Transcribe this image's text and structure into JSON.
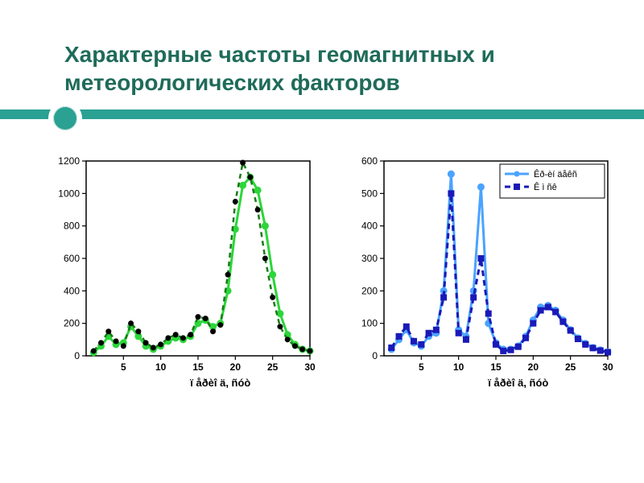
{
  "title": "Характерные частоты геомагнитных и метеорологических факторов",
  "accent_color": "#2aa193",
  "title_color": "#1f6b5a",
  "chart_left": {
    "type": "line",
    "xlabel": "ï åðèî ä, ñóò",
    "xlim": [
      0,
      30
    ],
    "xtick_step": 5,
    "ylim": [
      0,
      1200
    ],
    "ytick_step": 200,
    "series": [
      {
        "name": "solid",
        "color": "#2cd63a",
        "dash": "none",
        "line_width": 3,
        "marker": "circle",
        "marker_size": 4,
        "data": [
          [
            1,
            20
          ],
          [
            2,
            60
          ],
          [
            3,
            120
          ],
          [
            4,
            70
          ],
          [
            5,
            80
          ],
          [
            6,
            180
          ],
          [
            7,
            120
          ],
          [
            8,
            60
          ],
          [
            9,
            40
          ],
          [
            10,
            60
          ],
          [
            11,
            90
          ],
          [
            12,
            110
          ],
          [
            13,
            100
          ],
          [
            14,
            120
          ],
          [
            15,
            200
          ],
          [
            16,
            220
          ],
          [
            17,
            180
          ],
          [
            18,
            200
          ],
          [
            19,
            400
          ],
          [
            20,
            780
          ],
          [
            21,
            1050
          ],
          [
            22,
            1100
          ],
          [
            23,
            1020
          ],
          [
            24,
            800
          ],
          [
            25,
            500
          ],
          [
            26,
            260
          ],
          [
            27,
            130
          ],
          [
            28,
            70
          ],
          [
            29,
            40
          ],
          [
            30,
            30
          ]
        ]
      },
      {
        "name": "dashed",
        "color": "#1a7a1a",
        "dash": "6,5",
        "line_width": 2.5,
        "marker": "dot",
        "marker_size": 3,
        "data": [
          [
            1,
            30
          ],
          [
            2,
            80
          ],
          [
            3,
            150
          ],
          [
            4,
            90
          ],
          [
            5,
            60
          ],
          [
            6,
            200
          ],
          [
            7,
            150
          ],
          [
            8,
            80
          ],
          [
            9,
            50
          ],
          [
            10,
            70
          ],
          [
            11,
            110
          ],
          [
            12,
            130
          ],
          [
            13,
            110
          ],
          [
            14,
            130
          ],
          [
            15,
            240
          ],
          [
            16,
            230
          ],
          [
            17,
            150
          ],
          [
            18,
            190
          ],
          [
            19,
            500
          ],
          [
            20,
            950
          ],
          [
            21,
            1190
          ],
          [
            22,
            1100
          ],
          [
            23,
            900
          ],
          [
            24,
            600
          ],
          [
            25,
            360
          ],
          [
            26,
            180
          ],
          [
            27,
            100
          ],
          [
            28,
            60
          ],
          [
            29,
            40
          ],
          [
            30,
            30
          ]
        ]
      }
    ],
    "background_color": "#ffffff",
    "axis_color": "#000000"
  },
  "chart_right": {
    "type": "line",
    "xlabel": "ï åðèî ä, ñóò",
    "xlim": [
      0,
      30
    ],
    "xtick_step": 5,
    "ylim": [
      0,
      600
    ],
    "ytick_step": 100,
    "legend": {
      "items": [
        {
          "label": "Êð-èí äåêñ",
          "color": "#4aa3ff",
          "dash": "none",
          "marker": "circle"
        },
        {
          "label": "Ê ì ñê",
          "color": "#1a1ab8",
          "dash": "7,5",
          "marker": "square"
        }
      ]
    },
    "series": [
      {
        "name": "s1",
        "color": "#4aa3ff",
        "dash": "none",
        "line_width": 3,
        "marker": "circle",
        "marker_size": 4,
        "data": [
          [
            1,
            20
          ],
          [
            2,
            50
          ],
          [
            3,
            80
          ],
          [
            4,
            40
          ],
          [
            5,
            30
          ],
          [
            6,
            60
          ],
          [
            7,
            70
          ],
          [
            8,
            200
          ],
          [
            9,
            560
          ],
          [
            10,
            80
          ],
          [
            11,
            60
          ],
          [
            12,
            200
          ],
          [
            13,
            520
          ],
          [
            14,
            100
          ],
          [
            15,
            40
          ],
          [
            16,
            20
          ],
          [
            17,
            20
          ],
          [
            18,
            30
          ],
          [
            19,
            60
          ],
          [
            20,
            110
          ],
          [
            21,
            150
          ],
          [
            22,
            155
          ],
          [
            23,
            140
          ],
          [
            24,
            110
          ],
          [
            25,
            80
          ],
          [
            26,
            55
          ],
          [
            27,
            38
          ],
          [
            28,
            25
          ],
          [
            29,
            18
          ],
          [
            30,
            12
          ]
        ]
      },
      {
        "name": "s2",
        "color": "#1a1ab8",
        "dash": "7,5",
        "line_width": 3,
        "marker": "square",
        "marker_size": 4,
        "data": [
          [
            1,
            25
          ],
          [
            2,
            60
          ],
          [
            3,
            90
          ],
          [
            4,
            45
          ],
          [
            5,
            35
          ],
          [
            6,
            70
          ],
          [
            7,
            80
          ],
          [
            8,
            180
          ],
          [
            9,
            500
          ],
          [
            10,
            70
          ],
          [
            11,
            50
          ],
          [
            12,
            180
          ],
          [
            13,
            300
          ],
          [
            14,
            130
          ],
          [
            15,
            35
          ],
          [
            16,
            15
          ],
          [
            17,
            18
          ],
          [
            18,
            28
          ],
          [
            19,
            55
          ],
          [
            20,
            100
          ],
          [
            21,
            140
          ],
          [
            22,
            150
          ],
          [
            23,
            135
          ],
          [
            24,
            105
          ],
          [
            25,
            78
          ],
          [
            26,
            52
          ],
          [
            27,
            35
          ],
          [
            28,
            24
          ],
          [
            29,
            16
          ],
          [
            30,
            11
          ]
        ]
      }
    ],
    "background_color": "#ffffff",
    "axis_color": "#000000"
  }
}
